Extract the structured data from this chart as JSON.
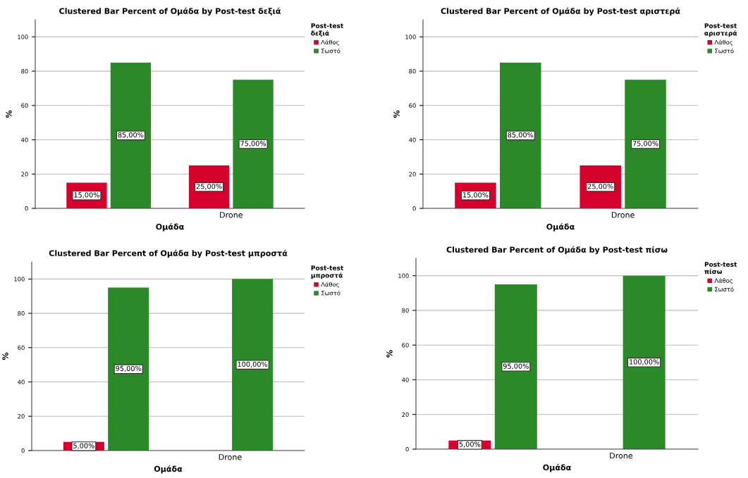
{
  "chart_data": [
    {
      "type": "bar",
      "title": "Clustered Bar Percent of Ομάδα by Post-test δεξιά",
      "xlabel": "Ομάδα",
      "ylabel": "%",
      "legend_title": "Post-test δεξιά",
      "categories": [
        null,
        "Drone"
      ],
      "ylim": [
        0,
        110
      ],
      "yticks": [
        0,
        20,
        40,
        60,
        80,
        100
      ],
      "grid": "y",
      "legend": "top right",
      "series": [
        {
          "name": "Λάθος",
          "color": "#d5002b",
          "values": [
            15,
            25
          ],
          "value_labels": [
            "15,00%",
            "25,00%"
          ]
        },
        {
          "name": "Σωστό",
          "color": "#2b8a27",
          "values": [
            85,
            75
          ],
          "value_labels": [
            "85,00%",
            "75,00%"
          ]
        }
      ]
    },
    {
      "type": "bar",
      "title": "Clustered Bar Percent of Ομάδα by Post-test αριστερά",
      "xlabel": "Ομάδα",
      "ylabel": "%",
      "legend_title": "Post-test αριστερά",
      "categories": [
        null,
        "Drone"
      ],
      "ylim": [
        0,
        110
      ],
      "yticks": [
        0,
        20,
        40,
        60,
        80,
        100
      ],
      "grid": "y",
      "legend": "top right",
      "series": [
        {
          "name": "Λάθος",
          "color": "#d5002b",
          "values": [
            15,
            25
          ],
          "value_labels": [
            "15,00%",
            "25,00%"
          ]
        },
        {
          "name": "Σωστό",
          "color": "#2b8a27",
          "values": [
            85,
            75
          ],
          "value_labels": [
            "85,00%",
            "75,00%"
          ]
        }
      ]
    },
    {
      "type": "bar",
      "title": "Clustered Bar Percent of Ομάδα by Post-test μπροστά",
      "xlabel": "Ομάδα",
      "ylabel": "%",
      "legend_title": "Post-test μπροστά",
      "categories": [
        null,
        "Drone"
      ],
      "ylim": [
        0,
        110
      ],
      "yticks": [
        0,
        20,
        40,
        60,
        80,
        100
      ],
      "grid": "y",
      "legend": "top right",
      "series": [
        {
          "name": "Λάθος",
          "color": "#d5002b",
          "values": [
            5,
            null
          ],
          "value_labels": [
            "5,00%",
            null
          ]
        },
        {
          "name": "Σωστό",
          "color": "#2b8a27",
          "values": [
            95,
            100
          ],
          "value_labels": [
            "95,00%",
            "100,00%"
          ]
        }
      ]
    },
    {
      "type": "bar",
      "title": "Clustered Bar Percent of Ομάδα by Post-test πίσω",
      "xlabel": "Ομάδα",
      "ylabel": "%",
      "legend_title": "Post-test πίσω",
      "categories": [
        null,
        "Drone"
      ],
      "ylim": [
        0,
        110
      ],
      "yticks": [
        0,
        20,
        40,
        60,
        80,
        100
      ],
      "grid": "y",
      "legend": "top right",
      "series": [
        {
          "name": "Λάθος",
          "color": "#d5002b",
          "values": [
            5,
            null
          ],
          "value_labels": [
            "5,00%",
            null
          ]
        },
        {
          "name": "Σωστό",
          "color": "#2b8a27",
          "values": [
            95,
            100
          ],
          "value_labels": [
            "95,00%",
            "100,00%"
          ]
        }
      ]
    }
  ]
}
